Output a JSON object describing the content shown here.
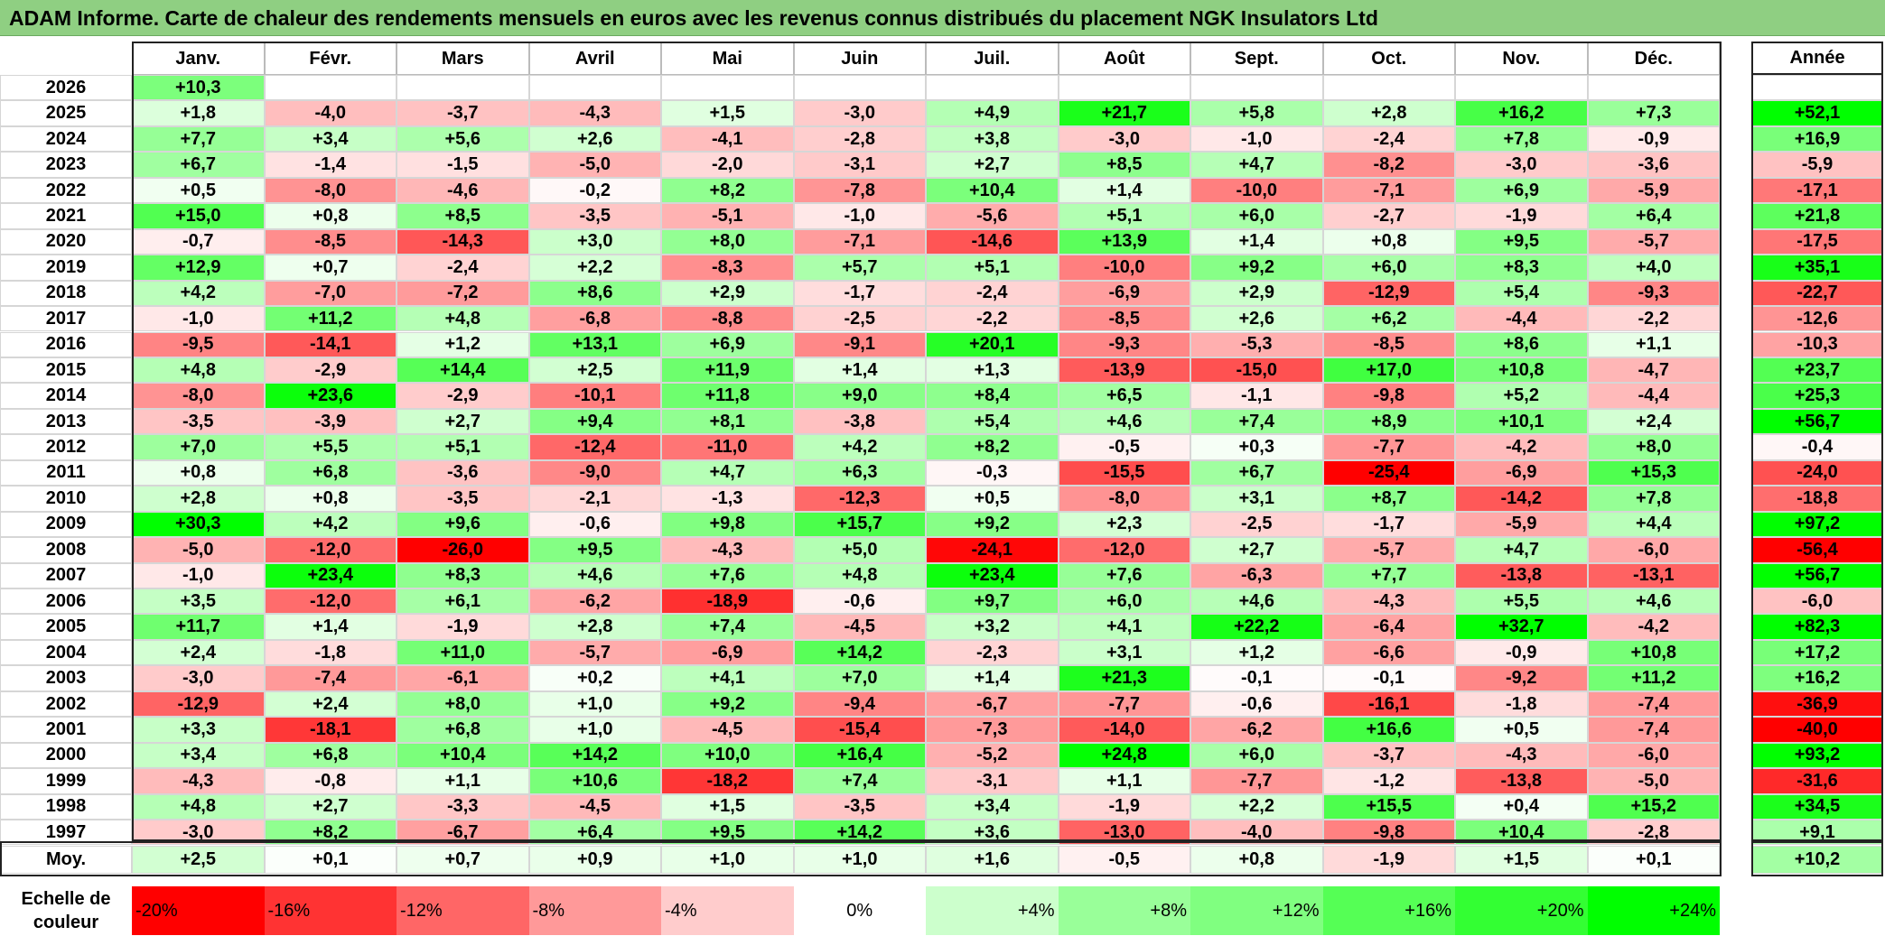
{
  "title": "ADAM Informe. Carte de chaleur des rendements mensuels en euros avec les revenus connus distribués du placement NGK Insulators Ltd",
  "chart_data": {
    "type": "heatmap",
    "months": [
      "Janv.",
      "Févr.",
      "Mars",
      "Avril",
      "Mai",
      "Juin",
      "Juil.",
      "Août",
      "Sept.",
      "Oct.",
      "Nov.",
      "Déc."
    ],
    "year_header": "Année",
    "rows": [
      {
        "year": "2026",
        "months": [
          "+10,3",
          "",
          "",
          "",
          "",
          "",
          "",
          "",
          "",
          "",
          "",
          ""
        ],
        "annual": ""
      },
      {
        "year": "2025",
        "months": [
          "+1,8",
          "-4,0",
          "-3,7",
          "-4,3",
          "+1,5",
          "-3,0",
          "+4,9",
          "+21,7",
          "+5,8",
          "+2,8",
          "+16,2",
          "+7,3"
        ],
        "annual": "+52,1"
      },
      {
        "year": "2024",
        "months": [
          "+7,7",
          "+3,4",
          "+5,6",
          "+2,6",
          "-4,1",
          "-2,8",
          "+3,8",
          "-3,0",
          "-1,0",
          "-2,4",
          "+7,8",
          "-0,9"
        ],
        "annual": "+16,9"
      },
      {
        "year": "2023",
        "months": [
          "+6,7",
          "-1,4",
          "-1,5",
          "-5,0",
          "-2,0",
          "-3,1",
          "+2,7",
          "+8,5",
          "+4,7",
          "-8,2",
          "-3,0",
          "-3,6"
        ],
        "annual": "-5,9"
      },
      {
        "year": "2022",
        "months": [
          "+0,5",
          "-8,0",
          "-4,6",
          "-0,2",
          "+8,2",
          "-7,8",
          "+10,4",
          "+1,4",
          "-10,0",
          "-7,1",
          "+6,9",
          "-5,9"
        ],
        "annual": "-17,1"
      },
      {
        "year": "2021",
        "months": [
          "+15,0",
          "+0,8",
          "+8,5",
          "-3,5",
          "-5,1",
          "-1,0",
          "-5,6",
          "+5,1",
          "+6,0",
          "-2,7",
          "-1,9",
          "+6,4"
        ],
        "annual": "+21,8"
      },
      {
        "year": "2020",
        "months": [
          "-0,7",
          "-8,5",
          "-14,3",
          "+3,0",
          "+8,0",
          "-7,1",
          "-14,6",
          "+13,9",
          "+1,4",
          "+0,8",
          "+9,5",
          "-5,7"
        ],
        "annual": "-17,5"
      },
      {
        "year": "2019",
        "months": [
          "+12,9",
          "+0,7",
          "-2,4",
          "+2,2",
          "-8,3",
          "+5,7",
          "+5,1",
          "-10,0",
          "+9,2",
          "+6,0",
          "+8,3",
          "+4,0"
        ],
        "annual": "+35,1"
      },
      {
        "year": "2018",
        "months": [
          "+4,2",
          "-7,0",
          "-7,2",
          "+8,6",
          "+2,9",
          "-1,7",
          "-2,4",
          "-6,9",
          "+2,9",
          "-12,9",
          "+5,4",
          "-9,3"
        ],
        "annual": "-22,7"
      },
      {
        "year": "2017",
        "months": [
          "-1,0",
          "+11,2",
          "+4,8",
          "-6,8",
          "-8,8",
          "-2,5",
          "-2,2",
          "-8,5",
          "+2,6",
          "+6,2",
          "-4,4",
          "-2,2"
        ],
        "annual": "-12,6"
      },
      {
        "year": "2016",
        "months": [
          "-9,5",
          "-14,1",
          "+1,2",
          "+13,1",
          "+6,9",
          "-9,1",
          "+20,1",
          "-9,3",
          "-5,3",
          "-8,5",
          "+8,6",
          "+1,1"
        ],
        "annual": "-10,3"
      },
      {
        "year": "2015",
        "months": [
          "+4,8",
          "-2,9",
          "+14,4",
          "+2,5",
          "+11,9",
          "+1,4",
          "+1,3",
          "-13,9",
          "-15,0",
          "+17,0",
          "+10,8",
          "-4,7"
        ],
        "annual": "+23,7"
      },
      {
        "year": "2014",
        "months": [
          "-8,0",
          "+23,6",
          "-2,9",
          "-10,1",
          "+11,8",
          "+9,0",
          "+8,4",
          "+6,5",
          "-1,1",
          "-9,8",
          "+5,2",
          "-4,4"
        ],
        "annual": "+25,3"
      },
      {
        "year": "2013",
        "months": [
          "-3,5",
          "-3,9",
          "+2,7",
          "+9,4",
          "+8,1",
          "-3,8",
          "+5,4",
          "+4,6",
          "+7,4",
          "+8,9",
          "+10,1",
          "+2,4"
        ],
        "annual": "+56,7"
      },
      {
        "year": "2012",
        "months": [
          "+7,0",
          "+5,5",
          "+5,1",
          "-12,4",
          "-11,0",
          "+4,2",
          "+8,2",
          "-0,5",
          "+0,3",
          "-7,7",
          "-4,2",
          "+8,0"
        ],
        "annual": "-0,4"
      },
      {
        "year": "2011",
        "months": [
          "+0,8",
          "+6,8",
          "-3,6",
          "-9,0",
          "+4,7",
          "+6,3",
          "-0,3",
          "-15,5",
          "+6,7",
          "-25,4",
          "-6,9",
          "+15,3"
        ],
        "annual": "-24,0"
      },
      {
        "year": "2010",
        "months": [
          "+2,8",
          "+0,8",
          "-3,5",
          "-2,1",
          "-1,3",
          "-12,3",
          "+0,5",
          "-8,0",
          "+3,1",
          "+8,7",
          "-14,2",
          "+7,8"
        ],
        "annual": "-18,8"
      },
      {
        "year": "2009",
        "months": [
          "+30,3",
          "+4,2",
          "+9,6",
          "-0,6",
          "+9,8",
          "+15,7",
          "+9,2",
          "+2,3",
          "-2,5",
          "-1,7",
          "-5,9",
          "+4,4"
        ],
        "annual": "+97,2"
      },
      {
        "year": "2008",
        "months": [
          "-5,0",
          "-12,0",
          "-26,0",
          "+9,5",
          "-4,3",
          "+5,0",
          "-24,1",
          "-12,0",
          "+2,7",
          "-5,7",
          "+4,7",
          "-6,0"
        ],
        "annual": "-56,4"
      },
      {
        "year": "2007",
        "months": [
          "-1,0",
          "+23,4",
          "+8,3",
          "+4,6",
          "+7,6",
          "+4,8",
          "+23,4",
          "+7,6",
          "-6,3",
          "+7,7",
          "-13,8",
          "-13,1"
        ],
        "annual": "+56,7"
      },
      {
        "year": "2006",
        "months": [
          "+3,5",
          "-12,0",
          "+6,1",
          "-6,2",
          "-18,9",
          "-0,6",
          "+9,7",
          "+6,0",
          "+4,6",
          "-4,3",
          "+5,5",
          "+4,6"
        ],
        "annual": "-6,0"
      },
      {
        "year": "2005",
        "months": [
          "+11,7",
          "+1,4",
          "-1,9",
          "+2,8",
          "+7,4",
          "-4,5",
          "+3,2",
          "+4,1",
          "+22,2",
          "-6,4",
          "+32,7",
          "-4,2"
        ],
        "annual": "+82,3"
      },
      {
        "year": "2004",
        "months": [
          "+2,4",
          "-1,8",
          "+11,0",
          "-5,7",
          "-6,9",
          "+14,2",
          "-2,3",
          "+3,1",
          "+1,2",
          "-6,6",
          "-0,9",
          "+10,8"
        ],
        "annual": "+17,2"
      },
      {
        "year": "2003",
        "months": [
          "-3,0",
          "-7,4",
          "-6,1",
          "+0,2",
          "+4,1",
          "+7,0",
          "+1,4",
          "+21,3",
          "-0,1",
          "-0,1",
          "-9,2",
          "+11,2"
        ],
        "annual": "+16,2"
      },
      {
        "year": "2002",
        "months": [
          "-12,9",
          "+2,4",
          "+8,0",
          "+1,0",
          "+9,2",
          "-9,4",
          "-6,7",
          "-7,7",
          "-0,6",
          "-16,1",
          "-1,8",
          "-7,4"
        ],
        "annual": "-36,9"
      },
      {
        "year": "2001",
        "months": [
          "+3,3",
          "-18,1",
          "+6,8",
          "+1,0",
          "-4,5",
          "-15,4",
          "-7,3",
          "-14,0",
          "-6,2",
          "+16,6",
          "+0,5",
          "-7,4"
        ],
        "annual": "-40,0"
      },
      {
        "year": "2000",
        "months": [
          "+3,4",
          "+6,8",
          "+10,4",
          "+14,2",
          "+10,0",
          "+16,4",
          "-5,2",
          "+24,8",
          "+6,0",
          "-3,7",
          "-4,3",
          "-6,0"
        ],
        "annual": "+93,2"
      },
      {
        "year": "1999",
        "months": [
          "-4,3",
          "-0,8",
          "+1,1",
          "+10,6",
          "-18,2",
          "+7,4",
          "-3,1",
          "+1,1",
          "-7,7",
          "-1,2",
          "-13,8",
          "-5,0"
        ],
        "annual": "-31,6"
      },
      {
        "year": "1998",
        "months": [
          "+4,8",
          "+2,7",
          "-3,3",
          "-4,5",
          "+1,5",
          "-3,5",
          "+3,4",
          "-1,9",
          "+2,2",
          "+15,5",
          "+0,4",
          "+15,2"
        ],
        "annual": "+34,5"
      },
      {
        "year": "1997",
        "months": [
          "-3,0",
          "+8,2",
          "-6,7",
          "+6,4",
          "+9,5",
          "+14,2",
          "+3,6",
          "-13,0",
          "-4,0",
          "-9,8",
          "+10,4",
          "-2,8"
        ],
        "annual": "+9,1"
      }
    ],
    "average": {
      "label": "Moy.",
      "months": [
        "+2,5",
        "+0,1",
        "+0,7",
        "+0,9",
        "+1,0",
        "+1,0",
        "+1,6",
        "-0,5",
        "+0,8",
        "-1,9",
        "+1,5",
        "+0,1"
      ],
      "annual": "+10,2"
    },
    "scale": {
      "label": "Echelle de couleur",
      "steps": [
        "-20%",
        "-16%",
        "-12%",
        "-8%",
        "-4%",
        "0%",
        "+4%",
        "+8%",
        "+12%",
        "+16%",
        "+20%",
        "+24%"
      ],
      "colors": [
        "#ff0000",
        "#ff3333",
        "#ff6666",
        "#ff9999",
        "#ffcccc",
        "#ffffff",
        "#ccffcc",
        "#99ff99",
        "#80ff80",
        "#55ff55",
        "#33ff33",
        "#00ff00"
      ]
    },
    "colors": {
      "title_bg": "#8fcf82",
      "neg_max": "#ff0000",
      "pos_max": "#00ff00",
      "neutral": "#ffffff"
    }
  }
}
